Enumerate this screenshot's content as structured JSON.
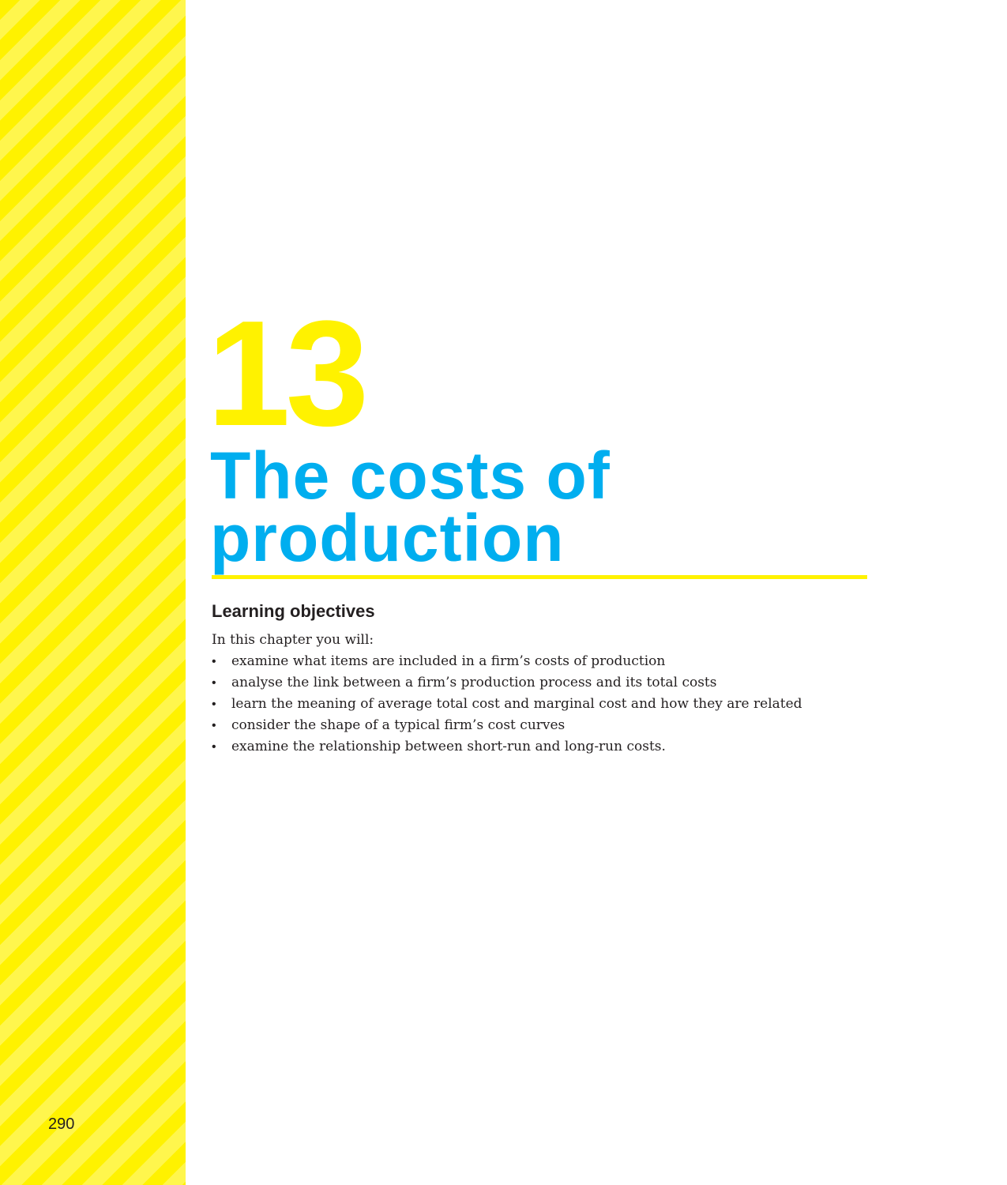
{
  "page": {
    "number": "290"
  },
  "chapter": {
    "number": "13",
    "title": "The costs of production"
  },
  "learning_objectives": {
    "heading": "Learning objectives",
    "intro": "In this chapter you will:",
    "bullet_glyph": "•",
    "items": [
      "examine what items are included in a firm’s costs of production",
      "analyse the link between a firm’s production process and its total costs",
      "learn the meaning of average total cost and marginal cost and how they are related",
      "consider the shape of a typical firm’s cost curves",
      "examine the relationship between short-run and long-run costs."
    ]
  },
  "colors": {
    "accent_yellow": "#fff200",
    "title_blue": "#00aeef",
    "text": "#231f20"
  }
}
